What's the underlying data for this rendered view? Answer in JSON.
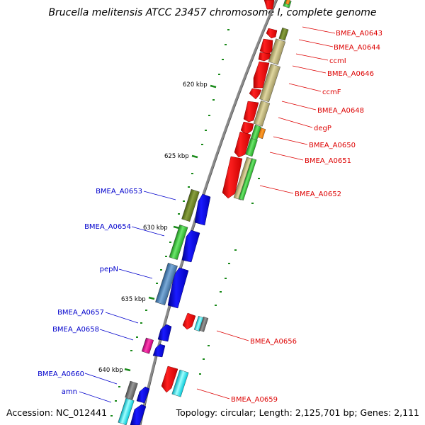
{
  "title": "Brucella melitensis ATCC 23457 chromosome I, complete genome",
  "accession": "Accession: NC_012441",
  "topology": "Topology: circular; Length: 2,125,701 bp; Genes: 2,111",
  "colors": {
    "backbone": "#7a7a7a",
    "tick": "#1a8a1a",
    "forward_label": "#dd0000",
    "reverse_label": "#0000cc"
  },
  "ticks": [
    {
      "label": "620 kbp"
    },
    {
      "label": "625 kbp"
    },
    {
      "label": "630 kbp"
    },
    {
      "label": "635 kbp"
    },
    {
      "label": "640 kbp"
    }
  ],
  "forward_labels": [
    {
      "name": "BMEA_A0643"
    },
    {
      "name": "BMEA_A0644"
    },
    {
      "name": "ccmI"
    },
    {
      "name": "BMEA_A0646"
    },
    {
      "name": "ccmF"
    },
    {
      "name": "BMEA_A0648"
    },
    {
      "name": "degP"
    },
    {
      "name": "BMEA_A0650"
    },
    {
      "name": "BMEA_A0651"
    },
    {
      "name": "BMEA_A0652"
    },
    {
      "name": "BMEA_A0656"
    },
    {
      "name": "BMEA_A0659"
    }
  ],
  "reverse_labels": [
    {
      "name": "BMEA_A0653"
    },
    {
      "name": "BMEA_A0654"
    },
    {
      "name": "pepN"
    },
    {
      "name": "BMEA_A0657"
    },
    {
      "name": "BMEA_A0658"
    },
    {
      "name": "BMEA_A0660"
    },
    {
      "name": "amn"
    }
  ]
}
